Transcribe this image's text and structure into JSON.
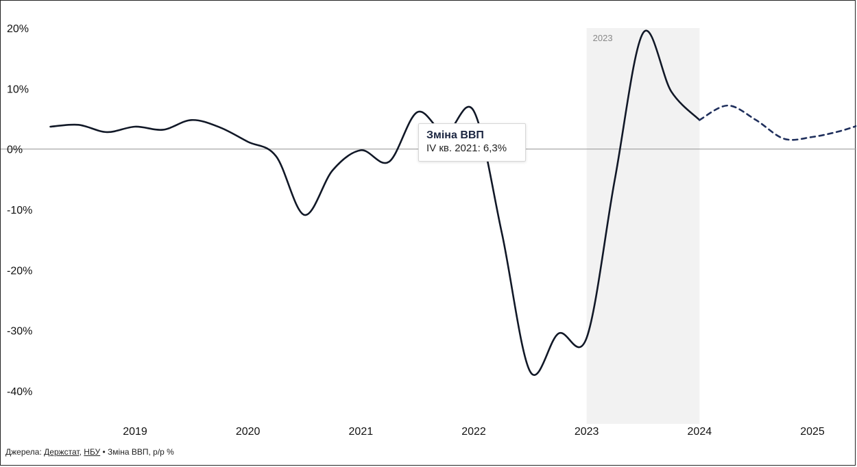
{
  "source": {
    "prefix": "Джерела:",
    "link1": "Держстат",
    "separator": ",",
    "link2": "НБУ",
    "suffix": "• Зміна ВВП, р/р %"
  },
  "tooltip": {
    "title": "Зміна ВВП",
    "value": "IV кв. 2021: 6,3%"
  },
  "chart_data": {
    "type": "line",
    "title": "",
    "xlabel": "",
    "ylabel": "",
    "xlim": [
      2018.2,
      2025.5
    ],
    "ylim": [
      -46,
      22
    ],
    "yticks": [
      20,
      10,
      0,
      -10,
      -20,
      -30,
      -40
    ],
    "ytick_labels": [
      "20%",
      "10%",
      "0%",
      "-10%",
      "-20%",
      "-30%",
      "-40%"
    ],
    "xticks": [
      2019,
      2020,
      2021,
      2022,
      2023,
      2024,
      2025
    ],
    "xtick_labels": [
      "2019",
      "2020",
      "2021",
      "2022",
      "2023",
      "2024",
      "2025"
    ],
    "zero_line": true,
    "grid": false,
    "highlight_band": {
      "from": 2023.0,
      "to": 2024.0,
      "label": "2023"
    },
    "series": [
      {
        "style": "solid",
        "color": "#111827",
        "points": [
          [
            2018.25,
            3.7
          ],
          [
            2018.5,
            4.0
          ],
          [
            2018.75,
            2.8
          ],
          [
            2019.0,
            3.7
          ],
          [
            2019.25,
            3.2
          ],
          [
            2019.5,
            4.8
          ],
          [
            2019.75,
            3.6
          ],
          [
            2020.0,
            1.2
          ],
          [
            2020.25,
            -1.2
          ],
          [
            2020.5,
            -10.9
          ],
          [
            2020.75,
            -3.5
          ],
          [
            2021.0,
            -0.2
          ],
          [
            2021.25,
            -2.1
          ],
          [
            2021.5,
            6.1
          ],
          [
            2021.75,
            2.6
          ],
          [
            2022.0,
            6.3
          ],
          [
            2022.25,
            -14.0
          ],
          [
            2022.5,
            -36.8
          ],
          [
            2022.75,
            -30.5
          ],
          [
            2023.0,
            -31.2
          ],
          [
            2023.25,
            -5.0
          ],
          [
            2023.5,
            19.2
          ],
          [
            2023.75,
            9.5
          ],
          [
            2024.0,
            4.8
          ]
        ]
      },
      {
        "style": "dashed",
        "color": "#1f2f5c",
        "points": [
          [
            2024.0,
            4.8
          ],
          [
            2024.25,
            7.2
          ],
          [
            2024.5,
            4.8
          ],
          [
            2024.75,
            1.7
          ],
          [
            2025.0,
            2.0
          ],
          [
            2025.25,
            3.0
          ],
          [
            2025.5,
            4.5
          ]
        ]
      }
    ],
    "highlighted_point": {
      "x": 2022.0,
      "y": 6.3
    }
  }
}
